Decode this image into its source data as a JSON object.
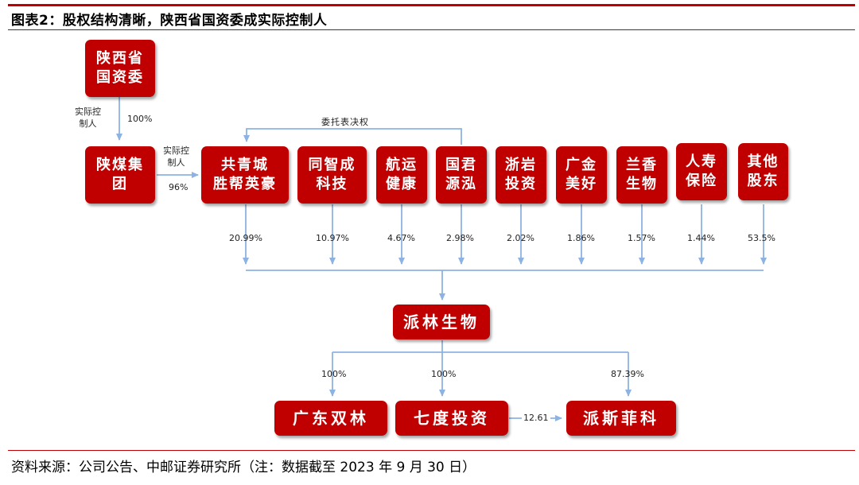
{
  "title": "图表2：股权结构清晰，陕西省国资委成实际控制人",
  "source": "资料来源：公司公告、中邮证券研究所（注：数据截至 2023 年 9 月 30 日）",
  "colors": {
    "accent": "#c00000",
    "line": "#8db3e2"
  },
  "nodes": {
    "sasac": "陕西省\n国资委",
    "shanmei": "陕煤集\n团",
    "gongqing": "共青城\n胜帮英豪",
    "tongzhi": "同智成\n科技",
    "hangyun": "航运\n健康",
    "guojun": "国君\n源泓",
    "zheyan": "浙岩\n投资",
    "guangjin": "广金\n美好",
    "lanxiang": "兰香\n生物",
    "renshou": "人寿\n保险",
    "qita": "其他\n股东",
    "pailin": "派林生物",
    "guangdong": "广东双林",
    "qidu": "七度投资",
    "paisi": "派斯菲科"
  },
  "labels": {
    "sasac_ctrl": "实际控\n制人",
    "sasac_pct": "100%",
    "shanmei_ctrl": "实际控\n制人",
    "shanmei_pct": "96%",
    "proxy": "委托表决权",
    "gongqing_pct": "20.99%",
    "tongzhi_pct": "10.97%",
    "hangyun_pct": "4.67%",
    "guojun_pct": "2.98%",
    "zheyan_pct": "2.02%",
    "guangjin_pct": "1.86%",
    "lanxiang_pct": "1.57%",
    "renshou_pct": "1.44%",
    "qita_pct": "53.5%",
    "guangdong_pct": "100%",
    "qidu_pct": "100%",
    "paisi_pct": "87.39%",
    "qidu_paisi": "12.61"
  }
}
